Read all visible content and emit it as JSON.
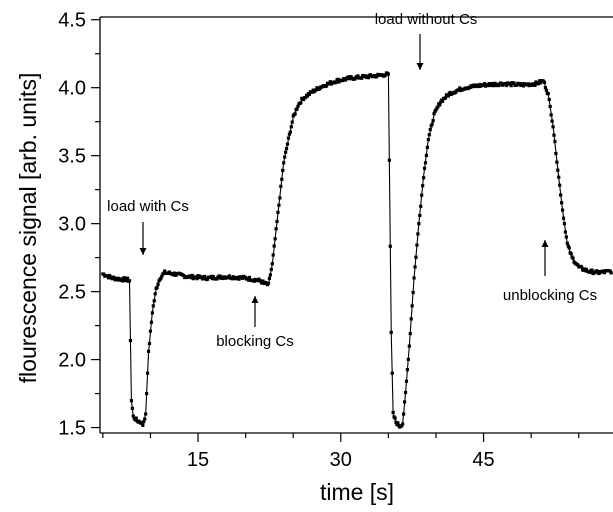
{
  "chart_data": {
    "type": "scatter",
    "title": "",
    "xlabel": "time [s]",
    "ylabel": "flourescence signal [arb. units]",
    "xlim": [
      4.7,
      58.6
    ],
    "ylim": [
      1.46,
      4.52
    ],
    "x_ticks": [
      15,
      30,
      45
    ],
    "x_tick_labels": [
      "15",
      "30",
      "45"
    ],
    "y_ticks": [
      1.5,
      2.0,
      2.5,
      3.0,
      3.5,
      4.0,
      4.5
    ],
    "y_tick_labels": [
      "1.5",
      "2.0",
      "2.5",
      "3.0",
      "3.5",
      "4.0",
      "4.5"
    ],
    "grid": false,
    "line_style": "black line with small square markers",
    "series": [
      {
        "values_sampled": [
          [
            5.0,
            2.63
          ],
          [
            6.0,
            2.6
          ],
          [
            7.0,
            2.59
          ],
          [
            7.5,
            2.59
          ],
          [
            7.8,
            2.58
          ],
          [
            8.0,
            1.7
          ],
          [
            8.2,
            1.58
          ],
          [
            8.6,
            1.55
          ],
          [
            9.0,
            1.54
          ],
          [
            9.2,
            1.52
          ],
          [
            9.5,
            1.6
          ],
          [
            9.8,
            2.05
          ],
          [
            10.2,
            2.35
          ],
          [
            10.6,
            2.52
          ],
          [
            11.0,
            2.6
          ],
          [
            11.5,
            2.64
          ],
          [
            12.5,
            2.63
          ],
          [
            14.0,
            2.61
          ],
          [
            16.0,
            2.6
          ],
          [
            18.0,
            2.61
          ],
          [
            20.0,
            2.6
          ],
          [
            21.5,
            2.58
          ],
          [
            22.0,
            2.56
          ],
          [
            22.4,
            2.55
          ],
          [
            22.8,
            2.7
          ],
          [
            23.2,
            2.95
          ],
          [
            23.6,
            3.2
          ],
          [
            24.0,
            3.45
          ],
          [
            24.5,
            3.62
          ],
          [
            25.0,
            3.78
          ],
          [
            25.5,
            3.87
          ],
          [
            26.0,
            3.92
          ],
          [
            27.0,
            3.97
          ],
          [
            28.0,
            4.01
          ],
          [
            29.5,
            4.05
          ],
          [
            31.0,
            4.07
          ],
          [
            32.5,
            4.08
          ],
          [
            34.0,
            4.09
          ],
          [
            35.0,
            4.1
          ],
          [
            35.3,
            2.2
          ],
          [
            35.5,
            1.6
          ],
          [
            35.8,
            1.54
          ],
          [
            36.2,
            1.51
          ],
          [
            36.5,
            1.53
          ],
          [
            36.8,
            1.75
          ],
          [
            37.2,
            2.1
          ],
          [
            37.7,
            2.6
          ],
          [
            38.2,
            3.0
          ],
          [
            38.7,
            3.35
          ],
          [
            39.2,
            3.62
          ],
          [
            39.8,
            3.8
          ],
          [
            40.5,
            3.9
          ],
          [
            41.5,
            3.96
          ],
          [
            43.0,
            4.0
          ],
          [
            45.0,
            4.02
          ],
          [
            47.0,
            4.03
          ],
          [
            49.0,
            4.02
          ],
          [
            50.5,
            4.03
          ],
          [
            51.3,
            4.05
          ],
          [
            51.8,
            3.95
          ],
          [
            52.3,
            3.72
          ],
          [
            52.8,
            3.4
          ],
          [
            53.3,
            3.1
          ],
          [
            53.8,
            2.85
          ],
          [
            54.3,
            2.75
          ],
          [
            55.0,
            2.68
          ],
          [
            56.0,
            2.65
          ],
          [
            57.0,
            2.64
          ],
          [
            58.5,
            2.65
          ]
        ]
      }
    ],
    "annotations": [
      {
        "text": "load with Cs",
        "x": 9.3,
        "y": 2.74,
        "arrow": "down"
      },
      {
        "text": "blocking Cs",
        "x": 22.4,
        "y": 2.56,
        "arrow": "up"
      },
      {
        "text": "load without Cs",
        "x": 39.2,
        "y": 4.17,
        "arrow": "down"
      },
      {
        "text": "unblocking Cs",
        "x": 52.8,
        "y": 2.93,
        "arrow": "up"
      }
    ]
  }
}
